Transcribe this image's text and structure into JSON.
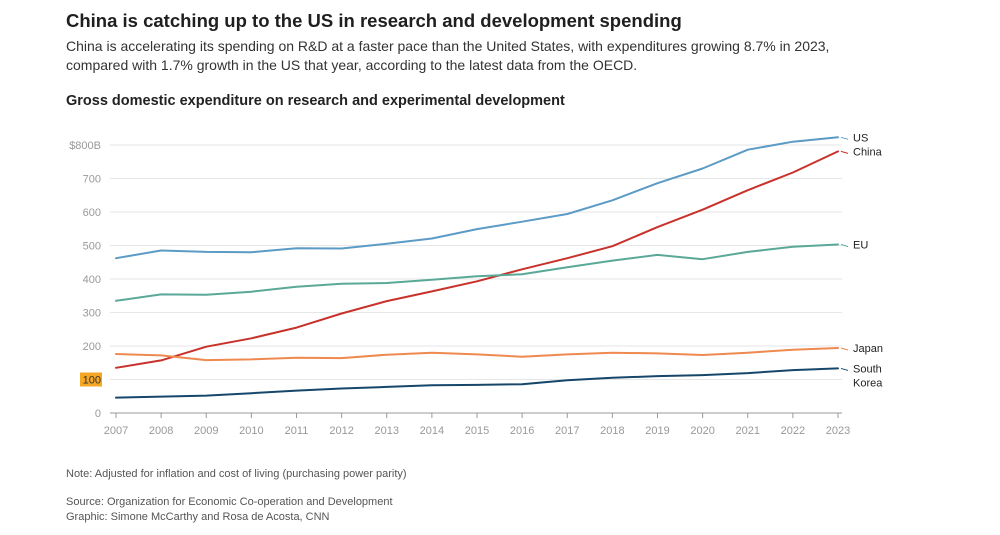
{
  "header": {
    "headline": "China is catching up to the US in research and development spending",
    "subhead": "China is accelerating its spending on R&D at a faster pace than the United States, with expenditures growing 8.7% in 2023, compared with 1.7% growth in the US that year, according to the latest data from the OECD."
  },
  "footer": {
    "note": "Note: Adjusted for inflation and cost of living (purchasing power parity)",
    "source": "Source: Organization for Economic Co-operation and Development",
    "credit": "Graphic: Simone McCarthy and Rosa de Acosta, CNN"
  },
  "colors": {
    "grid": "#e6e6e6",
    "axis": "#999999",
    "highlight": "#f5a623"
  },
  "chart_data": {
    "type": "line",
    "title": "Gross domestic expenditure on research and experimental development",
    "xlabel": "",
    "ylabel": "",
    "ylim": [
      0,
      800
    ],
    "x": [
      2007,
      2008,
      2009,
      2010,
      2011,
      2012,
      2013,
      2014,
      2015,
      2016,
      2017,
      2018,
      2019,
      2020,
      2021,
      2022,
      2023
    ],
    "y_ticks": [
      {
        "value": 0,
        "label": "0"
      },
      {
        "value": 100,
        "label": "100"
      },
      {
        "value": 200,
        "label": "200"
      },
      {
        "value": 300,
        "label": "300"
      },
      {
        "value": 400,
        "label": "400"
      },
      {
        "value": 500,
        "label": "500"
      },
      {
        "value": 600,
        "label": "600"
      },
      {
        "value": 700,
        "label": "700"
      },
      {
        "value": 800,
        "label": "$800B"
      }
    ],
    "highlight_tick": 100,
    "series": [
      {
        "name": "US",
        "label_lines": [
          "US"
        ],
        "color": "#5b9bc6",
        "values": [
          462,
          485,
          481,
          480,
          492,
          491,
          505,
          521,
          549,
          571,
          594,
          635,
          686,
          730,
          786,
          810,
          823
        ]
      },
      {
        "name": "China",
        "label_lines": [
          "China"
        ],
        "color": "#c9312b",
        "values": [
          135,
          157,
          198,
          223,
          255,
          297,
          334,
          363,
          393,
          429,
          462,
          498,
          555,
          607,
          665,
          718,
          781
        ]
      },
      {
        "name": "EU",
        "label_lines": [
          "EU"
        ],
        "color": "#5aa898",
        "values": [
          335,
          354,
          353,
          362,
          377,
          386,
          388,
          398,
          408,
          414,
          435,
          455,
          472,
          459,
          481,
          496,
          503
        ]
      },
      {
        "name": "Japan",
        "label_lines": [
          "Japan"
        ],
        "color": "#ee8a50",
        "values": [
          176,
          172,
          158,
          160,
          165,
          164,
          174,
          180,
          175,
          168,
          175,
          180,
          178,
          173,
          180,
          189,
          194
        ]
      },
      {
        "name": "South Korea",
        "label_lines": [
          "South",
          "Korea"
        ],
        "color": "#17466b",
        "values": [
          46,
          49,
          52,
          59,
          67,
          73,
          78,
          83,
          84,
          86,
          98,
          105,
          110,
          113,
          119,
          128,
          133
        ]
      }
    ]
  }
}
